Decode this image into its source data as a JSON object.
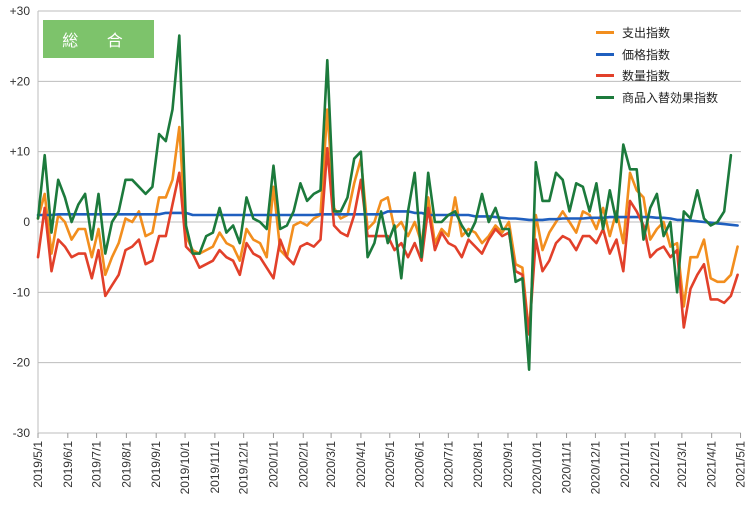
{
  "badge": {
    "label": "総 合"
  },
  "chart_data": {
    "type": "line",
    "title": "",
    "xlabel": "",
    "ylabel": "",
    "ylim": [
      -30,
      30
    ],
    "yticks": [
      30,
      20,
      10,
      0,
      -10,
      -20,
      -30
    ],
    "ytick_labels": [
      "+30",
      "+20",
      "+10",
      "0",
      "-10",
      "-20",
      "-30"
    ],
    "x_start_week": 0,
    "x_end_week": 104.5,
    "x_tick_labels": [
      "2019/5/1",
      "2019/6/1",
      "2019/7/1",
      "2019/8/1",
      "2019/9/1",
      "2019/10/1",
      "2019/11/1",
      "2019/12/1",
      "2020/1/1",
      "2020/2/1",
      "2020/3/1",
      "2020/4/1",
      "2020/5/1",
      "2020/6/1",
      "2020/7/1",
      "2020/8/1",
      "2020/9/1",
      "2020/10/1",
      "2020/11/1",
      "2020/12/1",
      "2021/1/1",
      "2021/2/1",
      "2021/3/1",
      "2021/4/1",
      "2021/5/1"
    ],
    "x_tick_weeks": [
      0,
      4.43,
      8.71,
      13.14,
      17.57,
      21.86,
      26.29,
      30.57,
      35,
      39.43,
      43.57,
      48,
      52.29,
      56.71,
      61,
      65.43,
      69.86,
      74.14,
      78.57,
      82.86,
      87.29,
      91.71,
      95.71,
      100.14,
      104.43
    ],
    "grid": true,
    "legend_position": "top-right",
    "series": [
      {
        "name": "支出指数",
        "color": "#f28e1e",
        "values": [
          0.5,
          4.0,
          -4.5,
          1.0,
          0,
          -2.5,
          -1.0,
          -1.0,
          -5.0,
          -1.0,
          -7.5,
          -5.0,
          -3.0,
          0.5,
          0,
          1.5,
          -2.0,
          -1.5,
          3.5,
          3.5,
          6.0,
          13.5,
          -2.0,
          -4.0,
          -4.5,
          -4.0,
          -3.5,
          -1.5,
          -3.0,
          -3.5,
          -5.5,
          -1.0,
          -2.5,
          -3.0,
          -5.0,
          5.0,
          -4.0,
          -5.0,
          -0.5,
          0,
          -0.5,
          0.5,
          1.0,
          16.0,
          2.0,
          0.5,
          1.0,
          5.5,
          9.0,
          -1.0,
          0,
          3.0,
          3.5,
          -1.0,
          0,
          -2.0,
          0,
          -3.0,
          3.5,
          -3.0,
          -1.0,
          -2.0,
          3.5,
          -2.0,
          -1.0,
          -1.5,
          -3.0,
          -2.0,
          -0.5,
          -1.5,
          0,
          -6.0,
          -6.5,
          -16.0,
          1.0,
          -4.0,
          -1.5,
          0,
          1.5,
          0,
          -1.5,
          1.5,
          1.0,
          -1.0,
          2.0,
          -2.0,
          1.5,
          -3.0,
          7.0,
          4.5,
          3.5,
          -2.5,
          -1.0,
          0,
          -3.5,
          -3.0,
          -12.0,
          -5.0,
          -5.0,
          -2.5,
          -8.0,
          -8.5,
          -8.5,
          -7.5,
          -3.5
        ]
      },
      {
        "name": "価格指数",
        "color": "#1f5fbf",
        "values": [
          1.0,
          1.0,
          1.0,
          1.1,
          1.1,
          1.1,
          1.1,
          1.1,
          1.1,
          1.1,
          1.1,
          1.1,
          1.1,
          1.1,
          1.1,
          1.1,
          1.1,
          1.1,
          1.1,
          1.3,
          1.3,
          1.3,
          1.3,
          1.0,
          1.0,
          1.0,
          1.0,
          1.0,
          1.0,
          1.0,
          1.0,
          1.0,
          1.0,
          1.0,
          1.0,
          1.0,
          1.0,
          1.0,
          1.0,
          1.0,
          1.0,
          1.0,
          1.1,
          1.1,
          1.1,
          1.1,
          1.1,
          1.1,
          1.1,
          1.1,
          1.1,
          1.1,
          1.5,
          1.5,
          1.5,
          1.5,
          1.3,
          1.3,
          1.0,
          1.0,
          1.0,
          1.0,
          1.0,
          1.0,
          1.0,
          0.8,
          0.8,
          0.8,
          0.7,
          0.6,
          0.5,
          0.5,
          0.4,
          0.3,
          0.3,
          0.3,
          0.4,
          0.4,
          0.5,
          0.5,
          0.5,
          0.5,
          0.6,
          0.6,
          0.6,
          0.7,
          0.7,
          0.7,
          0.7,
          0.7,
          0.7,
          0.7,
          0.6,
          0.6,
          0.5,
          0.3,
          0.3,
          0.2,
          0.1,
          0,
          -0.1,
          -0.2,
          -0.3,
          -0.4,
          -0.5
        ]
      },
      {
        "name": "数量指数",
        "color": "#e2402a",
        "values": [
          -5.0,
          2.0,
          -7.0,
          -2.5,
          -3.5,
          -5.0,
          -4.5,
          -4.5,
          -8.0,
          -4.0,
          -10.5,
          -9.0,
          -7.5,
          -4.0,
          -3.5,
          -2.5,
          -6.0,
          -5.5,
          -2.0,
          -2.0,
          2.5,
          7.0,
          -3.5,
          -4.5,
          -6.5,
          -6.0,
          -5.5,
          -4.0,
          -5.0,
          -5.5,
          -7.5,
          -3.0,
          -4.5,
          -5.0,
          -6.5,
          -8.0,
          -2.5,
          -5.0,
          -6.0,
          -3.5,
          -3.0,
          -3.5,
          -2.5,
          10.5,
          -0.5,
          -1.5,
          -2.0,
          1.0,
          6.0,
          -2.0,
          -2.0,
          -2.0,
          -2.0,
          -4.0,
          -3.0,
          -5.0,
          -3.0,
          -5.5,
          2.0,
          -4.0,
          -1.5,
          -3.0,
          -3.5,
          -5.0,
          -2.5,
          -3.5,
          -4.5,
          -2.5,
          -1.0,
          -2.0,
          -1.5,
          -7.0,
          -7.5,
          -16.0,
          -2.5,
          -7.0,
          -5.5,
          -3.0,
          -2.0,
          -2.5,
          -4.0,
          -2.0,
          -2.0,
          -3.0,
          -1.0,
          -4.5,
          -2.5,
          -7.0,
          3.0,
          1.5,
          -0.5,
          -5.0,
          -4.0,
          -3.5,
          -5.0,
          -4.0,
          -15.0,
          -9.5,
          -7.5,
          -6.0,
          -11.0,
          -11.0,
          -11.5,
          -10.5,
          -7.5
        ]
      },
      {
        "name": "商品入替効果指数",
        "color": "#1c7a3c",
        "values": [
          0.5,
          9.5,
          -1.5,
          6.0,
          3.5,
          0,
          2.5,
          4.0,
          -2.5,
          4.0,
          -4.5,
          0,
          1.5,
          6.0,
          6.0,
          5.0,
          4.0,
          5.0,
          12.5,
          11.5,
          16.0,
          26.5,
          -0.5,
          -4.5,
          -4.5,
          -2.0,
          -1.5,
          2.0,
          -1.5,
          -0.5,
          -3.0,
          3.5,
          0.5,
          0,
          -1.0,
          8.0,
          -1.0,
          -0.5,
          1.5,
          5.5,
          3.0,
          4.0,
          4.5,
          23.0,
          1.5,
          1.5,
          3.5,
          9.0,
          10.0,
          -5.0,
          -3.0,
          1.5,
          -3.0,
          -0.5,
          -8.0,
          1.5,
          7.0,
          -5.0,
          7.0,
          0,
          0,
          1.0,
          1.5,
          -0.5,
          -2.0,
          0,
          4.0,
          0,
          2.0,
          -1.0,
          -1.0,
          -8.5,
          -8.0,
          -21.0,
          8.5,
          3.0,
          3.0,
          7.0,
          6.0,
          1.5,
          5.5,
          5.0,
          1.5,
          5.5,
          -1.0,
          4.5,
          0,
          11.0,
          7.5,
          7.5,
          -2.5,
          2.0,
          4.0,
          -2.0,
          0,
          -10.0,
          1.5,
          0.5,
          4.5,
          0.5,
          -0.5,
          0,
          1.5,
          9.5
        ]
      }
    ]
  }
}
